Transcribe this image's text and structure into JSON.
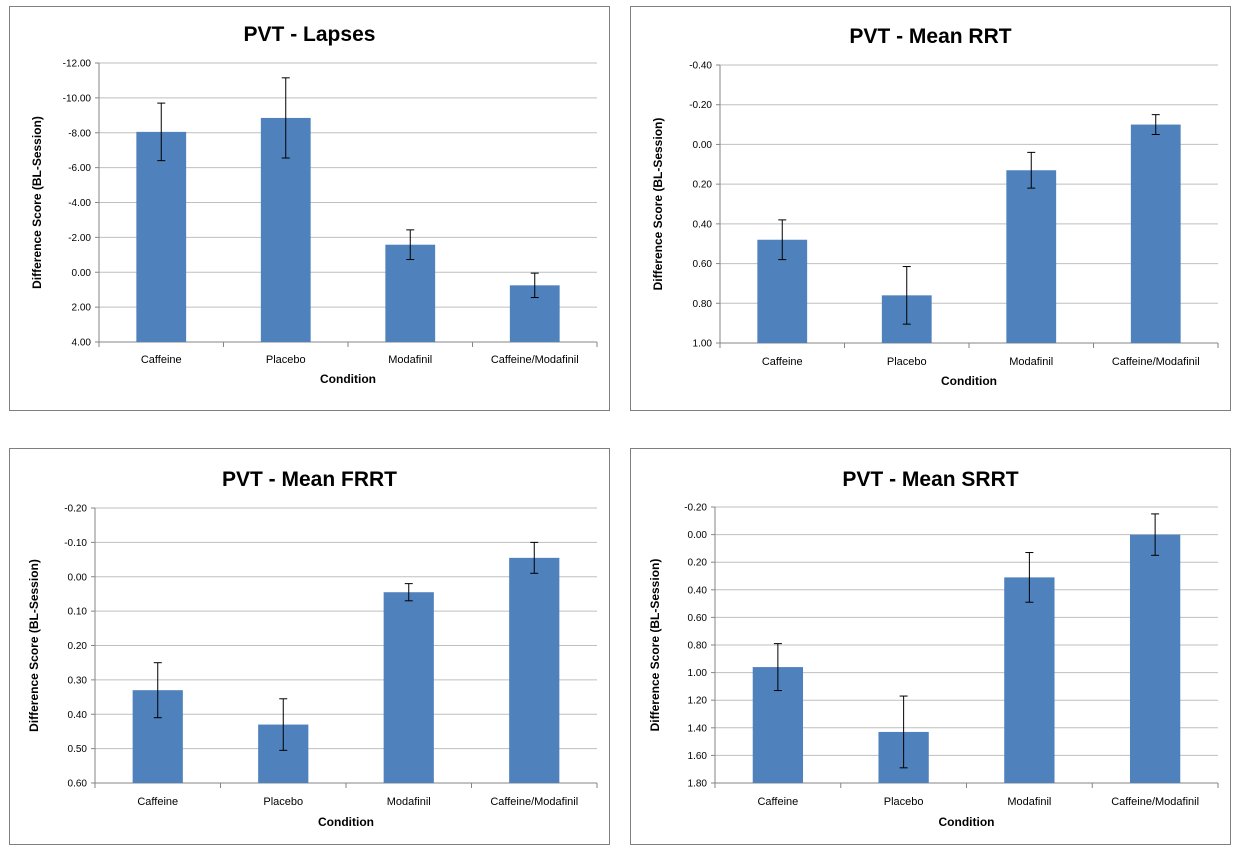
{
  "colors": {
    "bar": "#4f81bd",
    "grid": "#bfbfbf",
    "axis": "#868686",
    "error": "#000000"
  },
  "chart_data": [
    {
      "type": "bar",
      "title": "PVT - Lapses",
      "xlabel": "Condition",
      "ylabel": "Difference Score (BL-Session)",
      "categories": [
        "Caffeine",
        "Placebo",
        "Modafinil",
        "Caffeine/Modafinil"
      ],
      "values": [
        -8.05,
        -8.85,
        -1.58,
        0.75
      ],
      "errors": [
        1.65,
        2.3,
        0.85,
        0.7
      ],
      "yticks": [
        "-12.00",
        "-10.00",
        "-8.00",
        "-6.00",
        "-4.00",
        "-2.00",
        "0.00",
        "2.00",
        "4.00"
      ],
      "ylim": [
        -12,
        4
      ],
      "y_inverted": true,
      "grid": true,
      "legend": "none"
    },
    {
      "type": "bar",
      "title": "PVT - Mean RRT",
      "xlabel": "Condition",
      "ylabel": "Difference Score (BL-Session)",
      "categories": [
        "Caffeine",
        "Placebo",
        "Modafinil",
        "Caffeine/Modafinil"
      ],
      "values": [
        0.48,
        0.76,
        0.13,
        -0.1
      ],
      "errors": [
        0.1,
        0.145,
        0.09,
        0.05
      ],
      "yticks": [
        "-0.40",
        "-0.20",
        "0.00",
        "0.20",
        "0.40",
        "0.60",
        "0.80",
        "1.00"
      ],
      "ylim": [
        -0.4,
        1.0
      ],
      "y_inverted": true,
      "grid": true,
      "legend": "none"
    },
    {
      "type": "bar",
      "title": "PVT - Mean FRRT",
      "xlabel": "Condition",
      "ylabel": "Difference Score (BL-Session)",
      "categories": [
        "Caffeine",
        "Placebo",
        "Modafinil",
        "Caffeine/Modafinil"
      ],
      "values": [
        0.33,
        0.43,
        0.045,
        -0.055
      ],
      "errors": [
        0.08,
        0.075,
        0.025,
        0.045
      ],
      "yticks": [
        "-0.20",
        "-0.10",
        "0.00",
        "0.10",
        "0.20",
        "0.30",
        "0.40",
        "0.50",
        "0.60"
      ],
      "ylim": [
        -0.2,
        0.6
      ],
      "y_inverted": true,
      "grid": true,
      "legend": "none"
    },
    {
      "type": "bar",
      "title": "PVT - Mean SRRT",
      "xlabel": "Condition",
      "ylabel": "Difference Score (BL-Session)",
      "categories": [
        "Caffeine",
        "Placebo",
        "Modafinil",
        "Caffeine/Modafinil"
      ],
      "values": [
        0.96,
        1.43,
        0.31,
        0.0
      ],
      "errors": [
        0.17,
        0.26,
        0.18,
        0.15
      ],
      "yticks": [
        "-0.20",
        "0.00",
        "0.20",
        "0.40",
        "0.60",
        "0.80",
        "1.00",
        "1.20",
        "1.40",
        "1.60",
        "1.80"
      ],
      "ylim": [
        -0.2,
        1.8
      ],
      "y_inverted": true,
      "grid": true,
      "legend": "none"
    }
  ]
}
